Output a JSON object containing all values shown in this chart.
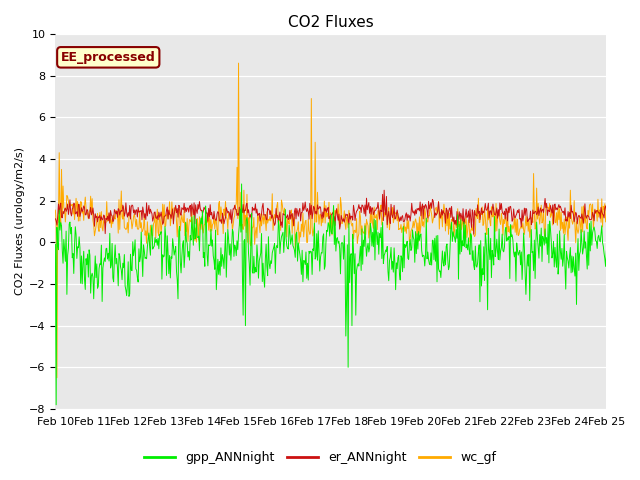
{
  "title": "CO2 Fluxes",
  "ylabel": "CO2 Fluxes (urology/m2/s)",
  "ylim": [
    -8,
    10
  ],
  "yticks": [
    -8,
    -6,
    -4,
    -2,
    0,
    2,
    4,
    6,
    8,
    10
  ],
  "n_points": 720,
  "days": 15,
  "xtick_labels": [
    "Feb 10",
    "Feb 11",
    "Feb 12",
    "Feb 13",
    "Feb 14",
    "Feb 15",
    "Feb 16",
    "Feb 17",
    "Feb 18",
    "Feb 19",
    "Feb 20",
    "Feb 21",
    "Feb 22",
    "Feb 23",
    "Feb 24",
    "Feb 25"
  ],
  "gpp_color": "#00ee00",
  "er_color": "#cc1111",
  "wc_color": "#ffaa00",
  "legend_labels": [
    "gpp_ANNnight",
    "er_ANNnight",
    "wc_gf"
  ],
  "annotation_text": "EE_processed",
  "annotation_bg": "#ffffcc",
  "annotation_border": "#880000",
  "bg_color": "#e8e8e8",
  "fig_bg": "#ffffff",
  "title_fontsize": 11,
  "axis_fontsize": 8,
  "legend_fontsize": 9,
  "line_width": 0.7
}
